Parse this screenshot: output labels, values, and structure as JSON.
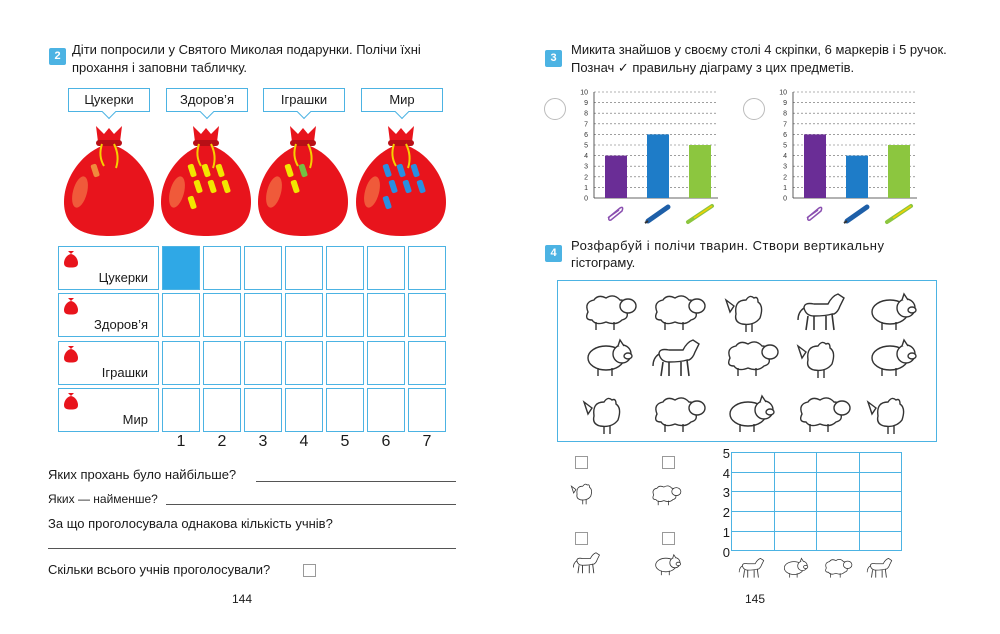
{
  "left_page": {
    "task2": {
      "number": "2",
      "text_line1": "Діти попросили у Святого Миколая подарунки. Полічи їхні",
      "text_line2": "прохання і заповни табличку."
    },
    "tags": [
      "Цукерки",
      "Здоров’я",
      "Іграшки",
      "Мир"
    ],
    "bags": [
      {
        "name": "Цукерки",
        "count": 1,
        "colors": [
          "#f08a3c"
        ]
      },
      {
        "name": "Здоров’я",
        "count": 7,
        "colors": [
          "#f2e600"
        ]
      },
      {
        "name": "Іграшки",
        "count": 3,
        "colors": [
          "#f2e600",
          "#74c043",
          "#f2e600"
        ]
      },
      {
        "name": "Мир",
        "count": 7,
        "colors": [
          "#2a8fe0"
        ]
      }
    ],
    "table_rows": [
      "Цукерки",
      "Здоров’я",
      "Іграшки",
      "Мир"
    ],
    "axis": [
      "1",
      "2",
      "3",
      "4",
      "5",
      "6",
      "7"
    ],
    "filled_cells": [
      {
        "row": 0,
        "col": 0
      }
    ],
    "questions": {
      "q1": "Яких прохань було найбільше?",
      "q2": "Яких — найменше?",
      "q3": "За що проголосувала однакова кількість учнів?",
      "q4": "Скільки всього учнів проголосували?"
    },
    "page_number": "144"
  },
  "right_page": {
    "task3": {
      "number": "3",
      "text_line1": "Микита знайшов у своєму столі 4 скріпки, 6 маркерів і 5 ручок.",
      "text_line2": "Познач ✓ правильну діаграму з цих предметів."
    },
    "task4": {
      "number": "4",
      "text_line1": "Розфарбуй і полічи тварин. Створи вертикальну",
      "text_line2": "гістограму."
    },
    "animal_grid": [
      [
        "sheep",
        "sheep",
        "hen",
        "horse",
        "pig"
      ],
      [
        "pig",
        "horse",
        "sheep",
        "hen",
        "pig"
      ],
      [
        "hen",
        "sheep",
        "pig",
        "sheep",
        "hen"
      ]
    ],
    "count_icons": [
      "hen",
      "sheep",
      "horse",
      "pig"
    ],
    "histogram_y": [
      "5",
      "4",
      "3",
      "2",
      "1",
      "0"
    ],
    "histogram_x_icons": [
      "horse",
      "pig",
      "sheep",
      "horse"
    ],
    "page_number": "145"
  },
  "chart_data": [
    {
      "type": "bar",
      "categories": [
        "paper-clip",
        "marker",
        "pen"
      ],
      "values": [
        4,
        6,
        5
      ],
      "colors": [
        "#6a2d96",
        "#1e7cc8",
        "#8cc63f"
      ],
      "ylim": [
        0,
        10
      ],
      "yticks": [
        "0",
        "1",
        "2",
        "3",
        "4",
        "5",
        "6",
        "7",
        "8",
        "9",
        "10"
      ],
      "grid": true
    },
    {
      "type": "bar",
      "categories": [
        "paper-clip",
        "marker",
        "pen"
      ],
      "values": [
        6,
        4,
        5
      ],
      "colors": [
        "#6a2d96",
        "#1e7cc8",
        "#8cc63f"
      ],
      "ylim": [
        0,
        10
      ],
      "yticks": [
        "0",
        "1",
        "2",
        "3",
        "4",
        "5",
        "6",
        "7",
        "8",
        "9",
        "10"
      ],
      "grid": true
    }
  ],
  "colors": {
    "accent": "#4cb3e3",
    "bag_red": "#e8141c",
    "cell_fill": "#2fa8e6"
  }
}
